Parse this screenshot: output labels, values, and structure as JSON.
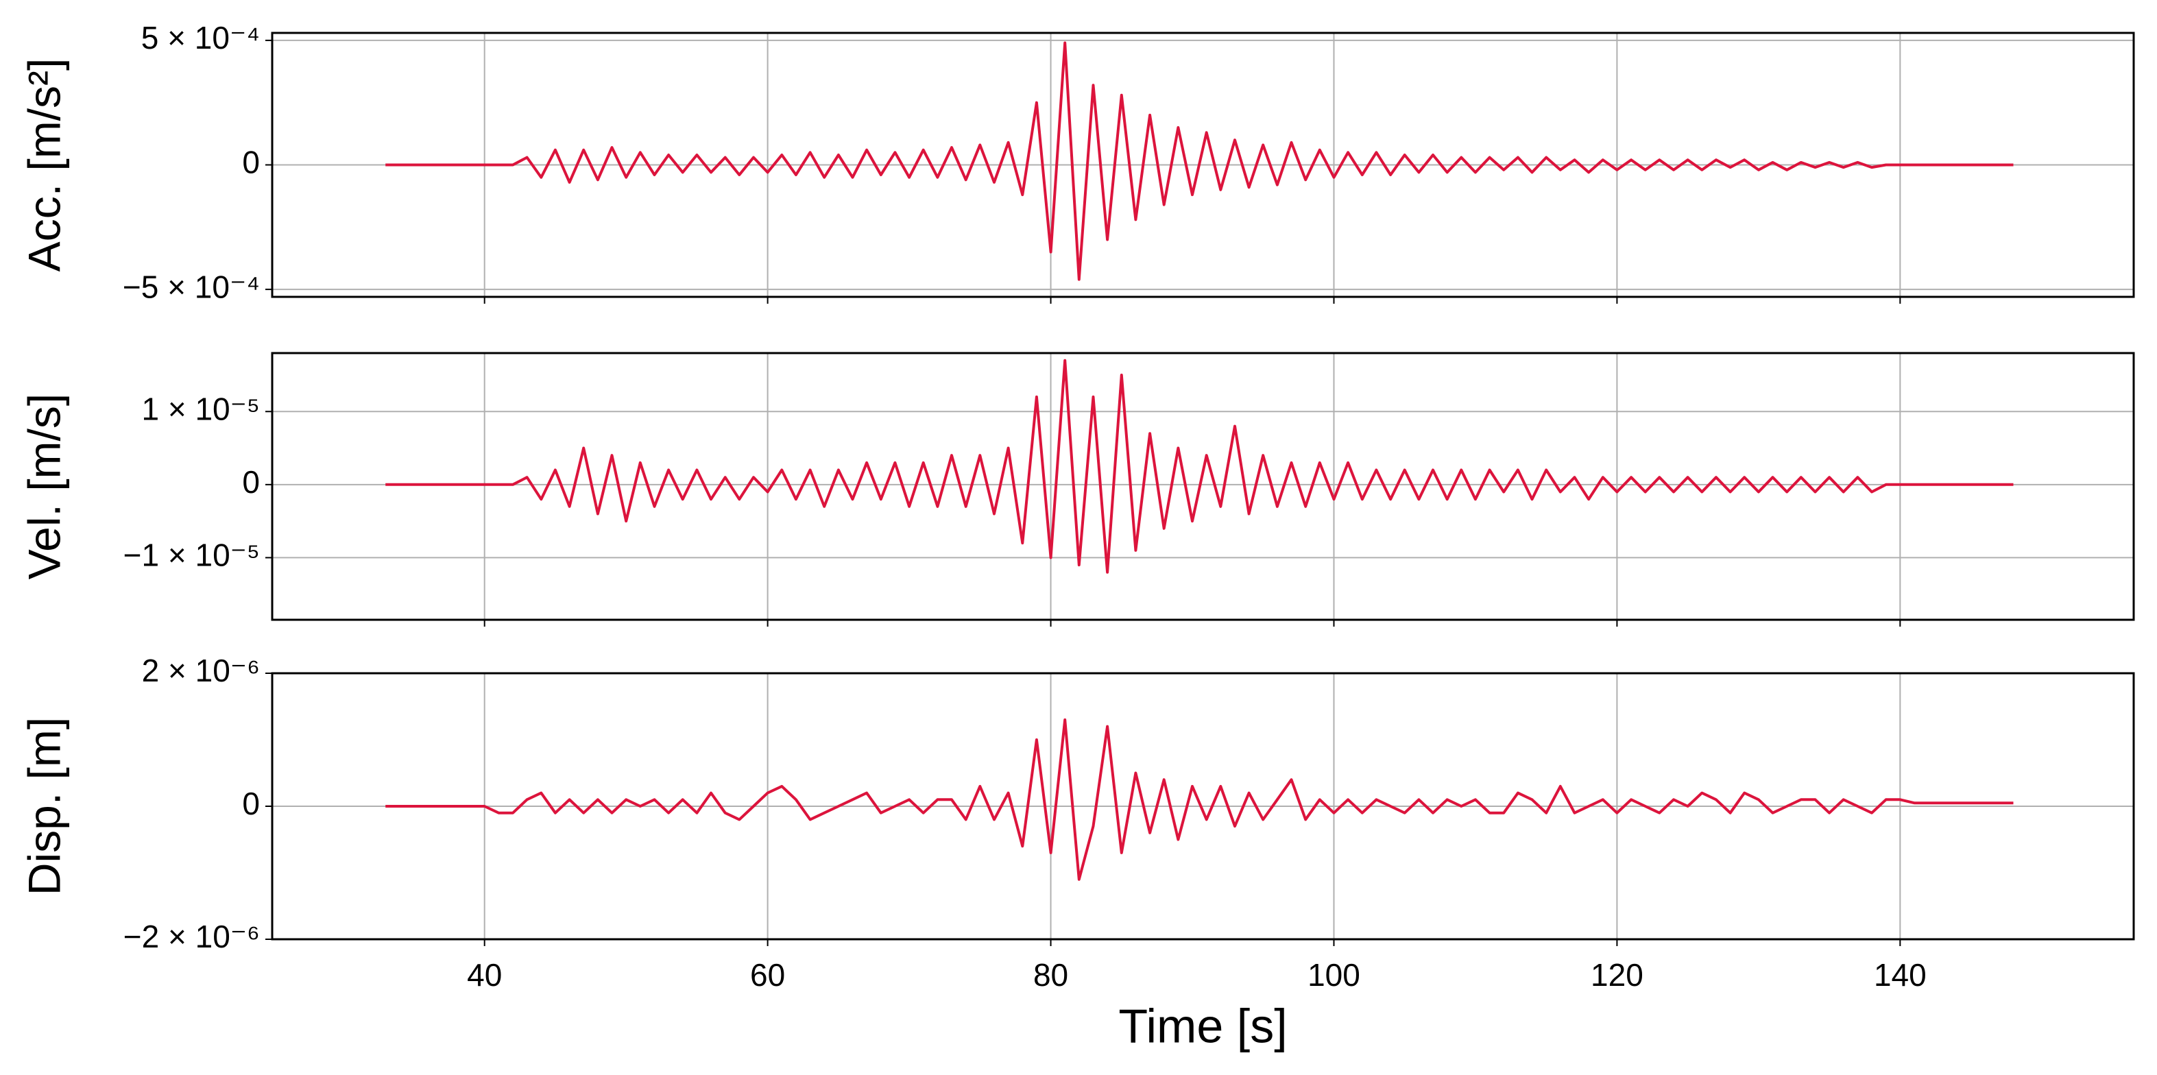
{
  "chart_data": [
    {
      "type": "line",
      "ylabel": "Acc. [m/s²]",
      "grid": true,
      "xlim": [
        25,
        156.5
      ],
      "xticks": [
        40,
        60,
        80,
        100,
        120,
        140
      ],
      "ylim": [
        -0.00053,
        0.00053
      ],
      "yticks": [
        {
          "value": -0.0005,
          "label": "−5 × 10⁻⁴"
        },
        0,
        {
          "value": 0.0005,
          "label": "5 × 10⁻⁴"
        }
      ],
      "x": [
        33,
        34,
        35,
        36,
        37,
        38,
        39,
        40,
        41,
        42,
        43,
        44,
        45,
        46,
        47,
        48,
        49,
        50,
        51,
        52,
        53,
        54,
        55,
        56,
        57,
        58,
        59,
        60,
        61,
        62,
        63,
        64,
        65,
        66,
        67,
        68,
        69,
        70,
        71,
        72,
        73,
        74,
        75,
        76,
        77,
        78,
        79,
        80,
        81,
        82,
        83,
        84,
        85,
        86,
        87,
        88,
        89,
        90,
        91,
        92,
        93,
        94,
        95,
        96,
        97,
        98,
        99,
        100,
        101,
        102,
        103,
        104,
        105,
        106,
        107,
        108,
        109,
        110,
        111,
        112,
        113,
        114,
        115,
        116,
        117,
        118,
        119,
        120,
        121,
        122,
        123,
        124,
        125,
        126,
        127,
        128,
        129,
        130,
        131,
        132,
        133,
        134,
        135,
        136,
        137,
        138,
        139,
        140,
        141,
        142,
        143,
        144,
        145,
        146,
        147,
        148
      ],
      "series": [
        {
          "color": "#dc143c",
          "values": [
            0,
            0,
            0,
            0,
            0,
            0,
            0,
            0,
            0,
            0,
            3e-05,
            -5e-05,
            6e-05,
            -7e-05,
            6e-05,
            -6e-05,
            7e-05,
            -5e-05,
            5e-05,
            -4e-05,
            4e-05,
            -3e-05,
            4e-05,
            -3e-05,
            3e-05,
            -4e-05,
            3e-05,
            -3e-05,
            4e-05,
            -4e-05,
            5e-05,
            -5e-05,
            4e-05,
            -5e-05,
            6e-05,
            -4e-05,
            5e-05,
            -5e-05,
            6e-05,
            -5e-05,
            7e-05,
            -6e-05,
            8e-05,
            -7e-05,
            9e-05,
            -0.00012,
            0.00025,
            -0.00035,
            0.00049,
            -0.00046,
            0.00032,
            -0.0003,
            0.00028,
            -0.00022,
            0.0002,
            -0.00016,
            0.00015,
            -0.00012,
            0.00013,
            -0.0001,
            0.0001,
            -9e-05,
            8e-05,
            -8e-05,
            9e-05,
            -6e-05,
            6e-05,
            -5e-05,
            5e-05,
            -4e-05,
            5e-05,
            -4e-05,
            4e-05,
            -3e-05,
            4e-05,
            -3e-05,
            3e-05,
            -3e-05,
            3e-05,
            -2e-05,
            3e-05,
            -3e-05,
            3e-05,
            -2e-05,
            2e-05,
            -3e-05,
            2e-05,
            -2e-05,
            2e-05,
            -2e-05,
            2e-05,
            -2e-05,
            2e-05,
            -2e-05,
            2e-05,
            -1e-05,
            2e-05,
            -2e-05,
            1e-05,
            -2e-05,
            1e-05,
            -1e-05,
            1e-05,
            -1e-05,
            1e-05,
            -1e-05,
            0,
            0,
            0,
            0,
            0,
            0,
            0,
            0,
            0,
            0
          ]
        }
      ]
    },
    {
      "type": "line",
      "ylabel": "Vel. [m/s]",
      "grid": true,
      "xlim": [
        25,
        156.5
      ],
      "xticks": [
        40,
        60,
        80,
        100,
        120,
        140
      ],
      "ylim": [
        -1.85e-05,
        1.8e-05
      ],
      "yticks": [
        {
          "value": -1e-05,
          "label": "−1 × 10⁻⁵"
        },
        0,
        {
          "value": 1e-05,
          "label": "1 × 10⁻⁵"
        }
      ],
      "x": [
        33,
        34,
        35,
        36,
        37,
        38,
        39,
        40,
        41,
        42,
        43,
        44,
        45,
        46,
        47,
        48,
        49,
        50,
        51,
        52,
        53,
        54,
        55,
        56,
        57,
        58,
        59,
        60,
        61,
        62,
        63,
        64,
        65,
        66,
        67,
        68,
        69,
        70,
        71,
        72,
        73,
        74,
        75,
        76,
        77,
        78,
        79,
        80,
        81,
        82,
        83,
        84,
        85,
        86,
        87,
        88,
        89,
        90,
        91,
        92,
        93,
        94,
        95,
        96,
        97,
        98,
        99,
        100,
        101,
        102,
        103,
        104,
        105,
        106,
        107,
        108,
        109,
        110,
        111,
        112,
        113,
        114,
        115,
        116,
        117,
        118,
        119,
        120,
        121,
        122,
        123,
        124,
        125,
        126,
        127,
        128,
        129,
        130,
        131,
        132,
        133,
        134,
        135,
        136,
        137,
        138,
        139,
        140,
        141,
        142,
        143,
        144,
        145,
        146,
        147,
        148
      ],
      "series": [
        {
          "color": "#dc143c",
          "values": [
            0,
            0,
            0,
            0,
            0,
            0,
            0,
            0,
            0,
            0,
            1e-06,
            -2e-06,
            2e-06,
            -3e-06,
            5e-06,
            -4e-06,
            4e-06,
            -5e-06,
            3e-06,
            -3e-06,
            2e-06,
            -2e-06,
            2e-06,
            -2e-06,
            1e-06,
            -2e-06,
            1e-06,
            -1e-06,
            2e-06,
            -2e-06,
            2e-06,
            -3e-06,
            2e-06,
            -2e-06,
            3e-06,
            -2e-06,
            3e-06,
            -3e-06,
            3e-06,
            -3e-06,
            4e-06,
            -3e-06,
            4e-06,
            -4e-06,
            5e-06,
            -8e-06,
            1.2e-05,
            -1e-05,
            1.7e-05,
            -1.1e-05,
            1.2e-05,
            -1.2e-05,
            1.5e-05,
            -9e-06,
            7e-06,
            -6e-06,
            5e-06,
            -5e-06,
            4e-06,
            -3e-06,
            8e-06,
            -4e-06,
            4e-06,
            -3e-06,
            3e-06,
            -3e-06,
            3e-06,
            -2e-06,
            3e-06,
            -2e-06,
            2e-06,
            -2e-06,
            2e-06,
            -2e-06,
            2e-06,
            -2e-06,
            2e-06,
            -2e-06,
            2e-06,
            -1e-06,
            2e-06,
            -2e-06,
            2e-06,
            -1e-06,
            1e-06,
            -2e-06,
            1e-06,
            -1e-06,
            1e-06,
            -1e-06,
            1e-06,
            -1e-06,
            1e-06,
            -1e-06,
            1e-06,
            -1e-06,
            1e-06,
            -1e-06,
            1e-06,
            -1e-06,
            1e-06,
            -1e-06,
            1e-06,
            -1e-06,
            1e-06,
            -1e-06,
            0,
            0,
            0,
            0,
            0,
            0,
            0,
            0,
            0,
            0
          ]
        }
      ]
    },
    {
      "type": "line",
      "ylabel": "Disp. [m]",
      "xlabel": "Time [s]",
      "grid": true,
      "xlim": [
        25,
        156.5
      ],
      "xticks": [
        40,
        60,
        80,
        100,
        120,
        140
      ],
      "ylim": [
        -2e-06,
        2e-06
      ],
      "yticks": [
        {
          "value": -2e-06,
          "label": "−2 × 10⁻⁶"
        },
        0,
        {
          "value": 2e-06,
          "label": "2 × 10⁻⁶"
        }
      ],
      "x": [
        33,
        34,
        35,
        36,
        37,
        38,
        39,
        40,
        41,
        42,
        43,
        44,
        45,
        46,
        47,
        48,
        49,
        50,
        51,
        52,
        53,
        54,
        55,
        56,
        57,
        58,
        59,
        60,
        61,
        62,
        63,
        64,
        65,
        66,
        67,
        68,
        69,
        70,
        71,
        72,
        73,
        74,
        75,
        76,
        77,
        78,
        79,
        80,
        81,
        82,
        83,
        84,
        85,
        86,
        87,
        88,
        89,
        90,
        91,
        92,
        93,
        94,
        95,
        96,
        97,
        98,
        99,
        100,
        101,
        102,
        103,
        104,
        105,
        106,
        107,
        108,
        109,
        110,
        111,
        112,
        113,
        114,
        115,
        116,
        117,
        118,
        119,
        120,
        121,
        122,
        123,
        124,
        125,
        126,
        127,
        128,
        129,
        130,
        131,
        132,
        133,
        134,
        135,
        136,
        137,
        138,
        139,
        140,
        141,
        142,
        143,
        144,
        145,
        146,
        147,
        148
      ],
      "series": [
        {
          "color": "#dc143c",
          "values": [
            0,
            0,
            0,
            0,
            0,
            0,
            0,
            0,
            -1e-07,
            -1e-07,
            1e-07,
            2e-07,
            -1e-07,
            1e-07,
            -1e-07,
            1e-07,
            -1e-07,
            1e-07,
            0,
            1e-07,
            -1e-07,
            1e-07,
            -1e-07,
            2e-07,
            -1e-07,
            -2e-07,
            0,
            2e-07,
            3e-07,
            1e-07,
            -2e-07,
            -1e-07,
            0,
            1e-07,
            2e-07,
            -1e-07,
            0,
            1e-07,
            -1e-07,
            1e-07,
            1e-07,
            -2e-07,
            3e-07,
            -2e-07,
            2e-07,
            -6e-07,
            1e-06,
            -7e-07,
            1.3e-06,
            -1.1e-06,
            -3e-07,
            1.2e-06,
            -7e-07,
            5e-07,
            -4e-07,
            4e-07,
            -5e-07,
            3e-07,
            -2e-07,
            3e-07,
            -3e-07,
            2e-07,
            -2e-07,
            1e-07,
            4e-07,
            -2e-07,
            1e-07,
            -1e-07,
            1e-07,
            -1e-07,
            1e-07,
            0,
            -1e-07,
            1e-07,
            -1e-07,
            1e-07,
            0,
            1e-07,
            -1e-07,
            -1e-07,
            2e-07,
            1e-07,
            -1e-07,
            3e-07,
            -1e-07,
            0,
            1e-07,
            -1e-07,
            1e-07,
            0,
            -1e-07,
            1e-07,
            0,
            2e-07,
            1e-07,
            -1e-07,
            2e-07,
            1e-07,
            -1e-07,
            0,
            1e-07,
            1e-07,
            -1e-07,
            1e-07,
            0,
            -1e-07,
            1e-07,
            1e-07,
            5e-08,
            5e-08,
            5e-08,
            5e-08,
            5e-08,
            5e-08,
            5e-08,
            5e-08
          ]
        }
      ]
    }
  ]
}
